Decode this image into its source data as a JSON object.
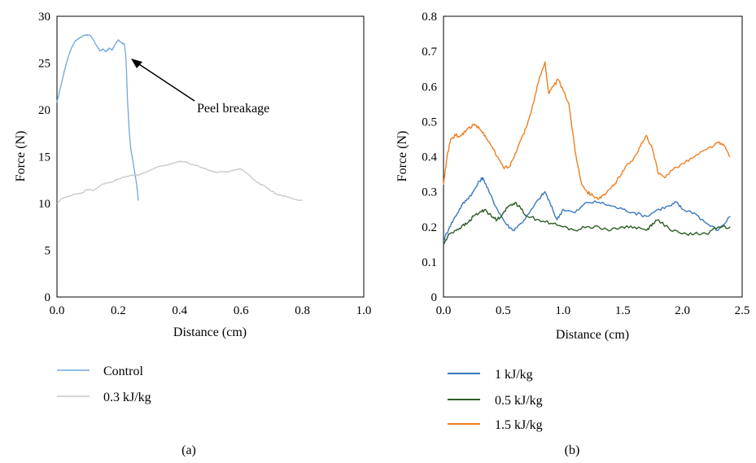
{
  "chart_data": [
    {
      "type": "line",
      "panel_label": "(a)",
      "xlabel": "Distance (cm)",
      "ylabel": "Force (N)",
      "xlim": [
        0,
        1.0
      ],
      "ylim": [
        0,
        30
      ],
      "xticks": [
        "0.0",
        "0.2",
        "0.4",
        "0.6",
        "0.8",
        "1.0"
      ],
      "yticks": [
        "0",
        "5",
        "10",
        "15",
        "20",
        "25",
        "30"
      ],
      "xtick_values": [
        0,
        0.2,
        0.4,
        0.6,
        0.8,
        1.0
      ],
      "ytick_values": [
        0,
        5,
        10,
        15,
        20,
        25,
        30
      ],
      "grid": false,
      "legend_position": "bottom",
      "annotation": {
        "text": "Peel breakage",
        "points_to": [
          0.23,
          27
        ]
      },
      "series": [
        {
          "name": "Control",
          "color": "#6fa8dc",
          "x": [
            0.0,
            0.01,
            0.02,
            0.03,
            0.04,
            0.05,
            0.06,
            0.07,
            0.08,
            0.09,
            0.1,
            0.11,
            0.12,
            0.13,
            0.14,
            0.15,
            0.16,
            0.17,
            0.18,
            0.19,
            0.2,
            0.21,
            0.22,
            0.225,
            0.23,
            0.235,
            0.24,
            0.25,
            0.26,
            0.265
          ],
          "y": [
            20.8,
            22.2,
            23.6,
            24.9,
            26.0,
            26.8,
            27.4,
            27.6,
            27.8,
            28.0,
            28.0,
            27.9,
            27.4,
            26.8,
            26.3,
            26.5,
            26.2,
            26.6,
            26.4,
            27.0,
            27.5,
            27.2,
            27.0,
            25.5,
            21.0,
            18.0,
            16.0,
            14.0,
            12.0,
            10.3
          ]
        },
        {
          "name": "0.3 kJ/kg",
          "color": "#c8c8c8",
          "x": [
            0.0,
            0.02,
            0.04,
            0.06,
            0.08,
            0.1,
            0.12,
            0.14,
            0.16,
            0.18,
            0.2,
            0.22,
            0.24,
            0.26,
            0.28,
            0.3,
            0.32,
            0.34,
            0.36,
            0.38,
            0.4,
            0.42,
            0.44,
            0.46,
            0.48,
            0.5,
            0.52,
            0.54,
            0.56,
            0.58,
            0.6,
            0.62,
            0.64,
            0.66,
            0.68,
            0.7,
            0.72,
            0.74,
            0.76,
            0.78,
            0.8
          ],
          "y": [
            10.0,
            10.6,
            10.8,
            11.0,
            11.1,
            11.5,
            11.4,
            11.9,
            12.2,
            12.3,
            12.6,
            12.8,
            13.0,
            13.0,
            13.2,
            13.5,
            13.8,
            14.0,
            14.1,
            14.3,
            14.5,
            14.4,
            14.2,
            14.0,
            13.7,
            13.5,
            13.3,
            13.4,
            13.4,
            13.6,
            13.7,
            13.2,
            12.6,
            12.1,
            11.8,
            11.3,
            10.9,
            10.8,
            10.6,
            10.4,
            10.3
          ]
        }
      ]
    },
    {
      "type": "line",
      "panel_label": "(b)",
      "xlabel": "Distance (cm)",
      "ylabel": "Force (N)",
      "xlim": [
        0,
        2.5
      ],
      "ylim": [
        0,
        0.8
      ],
      "xticks": [
        "0.0",
        "0.5",
        "1.0",
        "1.5",
        "2.0",
        "2.5"
      ],
      "yticks": [
        "0",
        "0.1",
        "0.2",
        "0.3",
        "0.4",
        "0.5",
        "0.6",
        "0.7",
        "0.8"
      ],
      "xtick_values": [
        0,
        0.5,
        1.0,
        1.5,
        2.0,
        2.5
      ],
      "ytick_values": [
        0,
        0.1,
        0.2,
        0.3,
        0.4,
        0.5,
        0.6,
        0.7,
        0.8
      ],
      "grid": false,
      "legend_position": "bottom",
      "series": [
        {
          "name": "1 kJ/kg",
          "color": "#3a78c0",
          "x": [
            0.0,
            0.05,
            0.1,
            0.15,
            0.2,
            0.25,
            0.3,
            0.33,
            0.38,
            0.45,
            0.52,
            0.58,
            0.65,
            0.72,
            0.8,
            0.85,
            0.9,
            0.95,
            1.0,
            1.1,
            1.2,
            1.3,
            1.4,
            1.5,
            1.6,
            1.7,
            1.8,
            1.9,
            1.95,
            2.0,
            2.1,
            2.2,
            2.3,
            2.4
          ],
          "y": [
            0.16,
            0.2,
            0.23,
            0.26,
            0.28,
            0.3,
            0.33,
            0.34,
            0.3,
            0.25,
            0.21,
            0.19,
            0.21,
            0.24,
            0.28,
            0.3,
            0.26,
            0.22,
            0.25,
            0.24,
            0.27,
            0.27,
            0.26,
            0.25,
            0.24,
            0.23,
            0.25,
            0.26,
            0.27,
            0.25,
            0.24,
            0.21,
            0.19,
            0.23
          ]
        },
        {
          "name": "0.5 kJ/kg",
          "color": "#2e5e26",
          "x": [
            0.0,
            0.05,
            0.1,
            0.15,
            0.2,
            0.25,
            0.3,
            0.35,
            0.4,
            0.45,
            0.5,
            0.55,
            0.6,
            0.65,
            0.7,
            0.8,
            0.9,
            1.0,
            1.1,
            1.2,
            1.3,
            1.4,
            1.5,
            1.6,
            1.7,
            1.75,
            1.8,
            1.9,
            2.0,
            2.1,
            2.2,
            2.3,
            2.4
          ],
          "y": [
            0.15,
            0.18,
            0.19,
            0.2,
            0.21,
            0.23,
            0.24,
            0.25,
            0.23,
            0.22,
            0.24,
            0.26,
            0.27,
            0.25,
            0.23,
            0.22,
            0.21,
            0.2,
            0.19,
            0.2,
            0.2,
            0.19,
            0.2,
            0.2,
            0.19,
            0.21,
            0.22,
            0.19,
            0.18,
            0.18,
            0.18,
            0.2,
            0.2
          ]
        },
        {
          "name": "1.5 kJ/kg",
          "color": "#ee7f22",
          "x": [
            0.0,
            0.03,
            0.06,
            0.1,
            0.15,
            0.2,
            0.25,
            0.3,
            0.35,
            0.4,
            0.45,
            0.5,
            0.55,
            0.6,
            0.65,
            0.7,
            0.75,
            0.8,
            0.85,
            0.88,
            0.92,
            0.96,
            1.0,
            1.05,
            1.1,
            1.15,
            1.2,
            1.25,
            1.3,
            1.35,
            1.4,
            1.45,
            1.5,
            1.55,
            1.6,
            1.65,
            1.7,
            1.75,
            1.8,
            1.85,
            1.9,
            2.0,
            2.1,
            2.2,
            2.3,
            2.35,
            2.4
          ],
          "y": [
            0.32,
            0.4,
            0.45,
            0.46,
            0.46,
            0.48,
            0.49,
            0.48,
            0.46,
            0.43,
            0.4,
            0.37,
            0.37,
            0.41,
            0.45,
            0.49,
            0.55,
            0.62,
            0.67,
            0.58,
            0.6,
            0.62,
            0.59,
            0.55,
            0.42,
            0.33,
            0.3,
            0.29,
            0.28,
            0.29,
            0.31,
            0.33,
            0.36,
            0.38,
            0.4,
            0.43,
            0.46,
            0.42,
            0.35,
            0.34,
            0.36,
            0.38,
            0.4,
            0.42,
            0.44,
            0.43,
            0.4
          ]
        }
      ]
    }
  ]
}
